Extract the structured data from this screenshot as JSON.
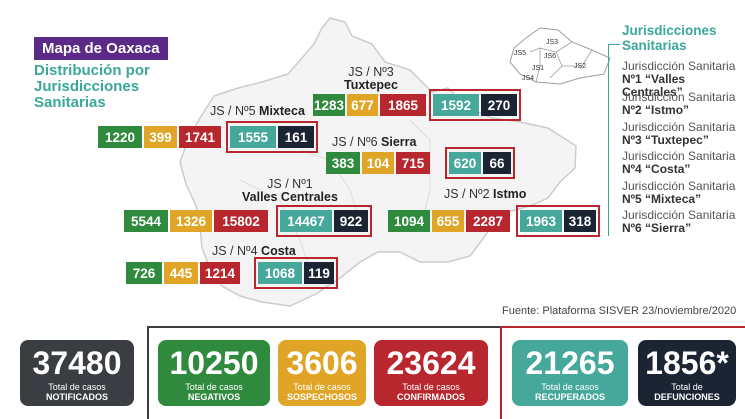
{
  "header": {
    "title": "Mapa de Oaxaca",
    "subtitle": "Distribución por Jurisdicciones Sanitarias"
  },
  "jurisdictions": {
    "tuxtepec": {
      "label_line1": "JS / Nº3",
      "label_line2": "Tuxtepec",
      "values": [
        "1283",
        "677",
        "1865",
        "1592",
        "270"
      ]
    },
    "mixteca": {
      "label_line1": "JS / Nº5",
      "label_line2": "Mixteca",
      "values": [
        "1220",
        "399",
        "1741",
        "1555",
        "161"
      ]
    },
    "sierra": {
      "label_line1": "JS / Nº6",
      "label_line2": "Sierra",
      "values": [
        "383",
        "104",
        "715",
        "620",
        "66"
      ]
    },
    "valles": {
      "label_line1": "JS / Nº1",
      "label_line2": "Valles Centrales",
      "values": [
        "5544",
        "1326",
        "15802",
        "14467",
        "922"
      ]
    },
    "istmo": {
      "label_line1": "JS / Nº2",
      "label_line2": "Istmo",
      "values": [
        "1094",
        "655",
        "2287",
        "1963",
        "318"
      ]
    },
    "costa": {
      "label_line1": "JS / Nº4",
      "label_line2": "Costa",
      "values": [
        "726",
        "445",
        "1214",
        "1068",
        "119"
      ]
    }
  },
  "legend": {
    "title_line1": "Jurisdicciones",
    "title_line2": "Sanitarias",
    "items": [
      {
        "line1": "Jurisdicción Sanitaria",
        "line2": "Nº1 “Valles Centrales”"
      },
      {
        "line1": "Jurisdicción Sanitaria",
        "line2": "Nº2 “Istmo”"
      },
      {
        "line1": "Jurisdicción Sanitaria",
        "line2": "Nº3 “Tuxtepec”"
      },
      {
        "line1": "Jurisdicción Sanitaria",
        "line2": "Nº4 “Costa”"
      },
      {
        "line1": "Jurisdicción Sanitaria",
        "line2": "Nº5 “Mixteca”"
      },
      {
        "line1": "Jurisdicción Sanitaria",
        "line2": "Nº6 “Sierra”"
      }
    ],
    "mini_map_labels": [
      "JS1",
      "JS2",
      "JS3",
      "JS4",
      "JS5",
      "JS6"
    ]
  },
  "source": "Fuente: Plataforma SISVER 23/noviembre/2020",
  "totals": [
    {
      "value": "37480",
      "label1": "Total de casos",
      "label2": "NOTIFICADOS",
      "color": "#3a3d42"
    },
    {
      "value": "10250",
      "label1": "Total de casos",
      "label2": "NEGATIVOS",
      "color": "#2f8a3e"
    },
    {
      "value": "3606",
      "label1": "Total de casos",
      "label2": "SOSPECHOSOS",
      "color": "#e0a526"
    },
    {
      "value": "23624",
      "label1": "Total de casos",
      "label2": "CONFIRMADOS",
      "color": "#b8262e"
    },
    {
      "value": "21265",
      "label1": "Total de casos",
      "label2": "RECUPERADOS",
      "color": "#45a89b"
    },
    {
      "value": "1856*",
      "label1": "Total de",
      "label2": "DEFUNCIONES",
      "color": "#1a2433"
    }
  ],
  "colors": {
    "negativos": "#2f8a3e",
    "sospechosos": "#e0a526",
    "confirmados": "#b8262e",
    "recuperados": "#45a89b",
    "defunciones": "#1a2433",
    "accent": "#5b2a86"
  }
}
